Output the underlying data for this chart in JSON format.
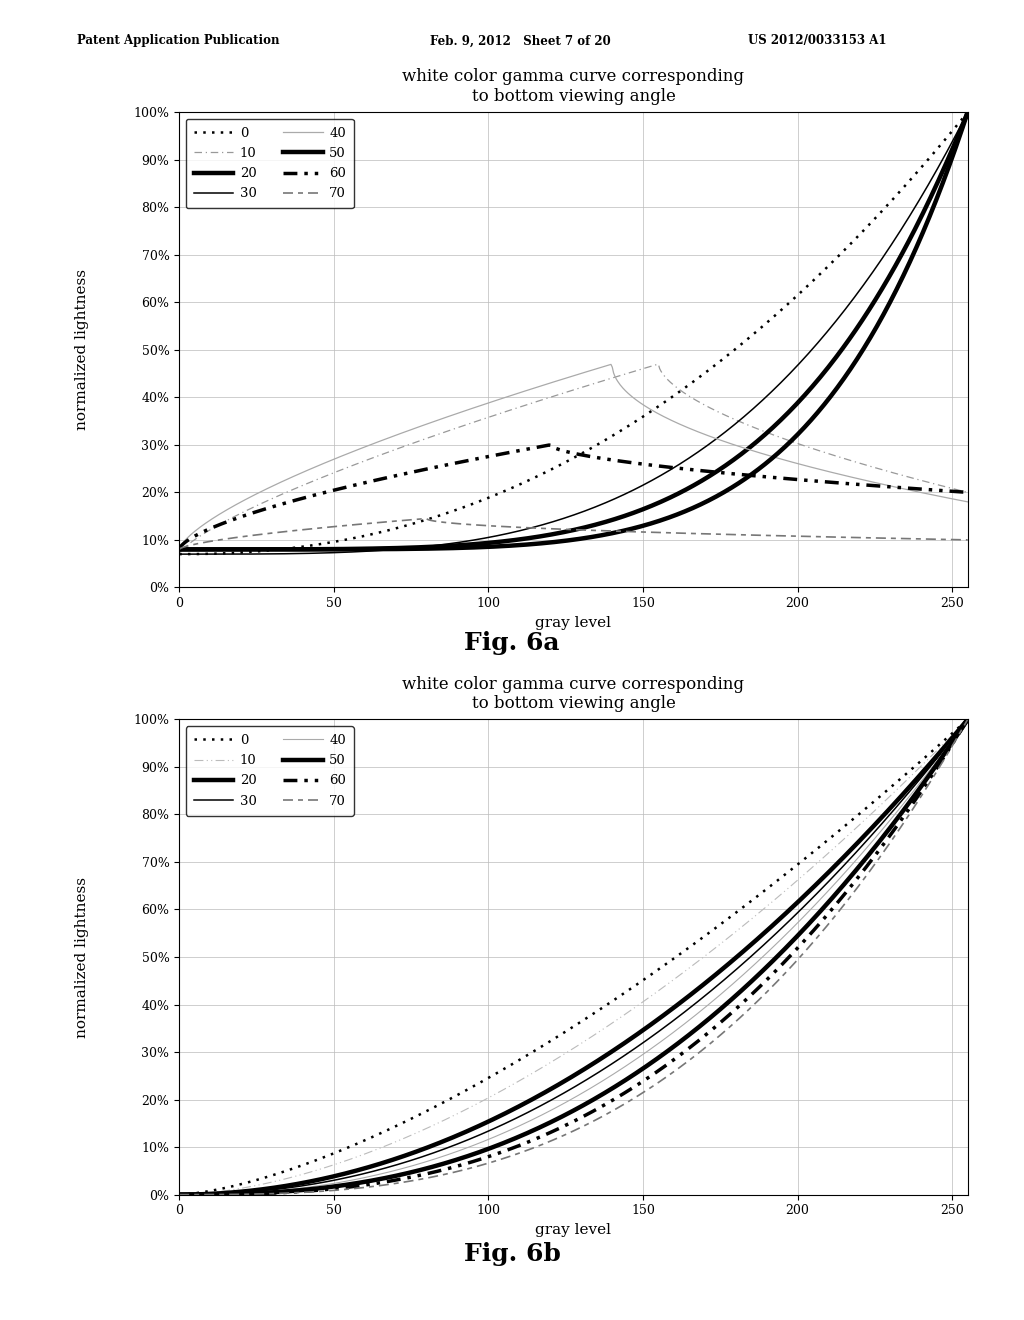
{
  "title": "white color gamma curve corresponding\nto bottom viewing angle",
  "xlabel": "gray level",
  "ylabel": "normalized lightness",
  "header_left": "Patent Application Publication",
  "header_mid": "Feb. 9, 2012   Sheet 7 of 20",
  "header_right": "US 2012/0033153 A1",
  "fig_label_a": "Fig. 6a",
  "fig_label_b": "Fig. 6b",
  "angles": [
    0,
    10,
    20,
    30,
    40,
    50,
    60,
    70
  ],
  "x_ticks": [
    0,
    50,
    100,
    150,
    200,
    250
  ],
  "y_ticks": [
    0,
    10,
    20,
    30,
    40,
    50,
    60,
    70,
    80,
    90,
    100
  ],
  "background": "#ffffff",
  "grid_color": "#bbbbbb"
}
